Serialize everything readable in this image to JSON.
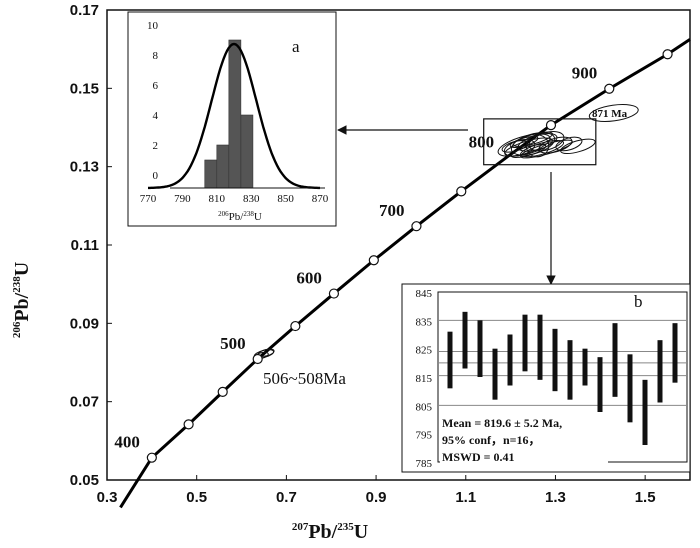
{
  "chart_data": {
    "type": "scatter",
    "title": "",
    "xlabel": {
      "mass_num": "207",
      "elem": "Pb",
      "den_mass": "235",
      "den_elem": "U"
    },
    "ylabel": {
      "mass_num": "206",
      "elem": "Pb",
      "den_mass": "238",
      "den_elem": "U"
    },
    "xlim": [
      0.3,
      1.6
    ],
    "ylim": [
      0.05,
      0.17
    ],
    "xticks": [
      "0.3",
      "0.5",
      "0.7",
      "0.9",
      "1.1",
      "1.3",
      "1.5"
    ],
    "yticks": [
      "0.05",
      "0.07",
      "0.09",
      "0.11",
      "0.13",
      "0.15",
      "0.17"
    ],
    "concordia_curve": [
      {
        "x": 0.33,
        "y": 0.043
      },
      {
        "x": 0.4,
        "y": 0.0557
      },
      {
        "x": 0.482,
        "y": 0.0642
      },
      {
        "x": 0.558,
        "y": 0.0725
      },
      {
        "x": 0.636,
        "y": 0.0809
      },
      {
        "x": 0.72,
        "y": 0.0893
      },
      {
        "x": 0.806,
        "y": 0.0976
      },
      {
        "x": 0.895,
        "y": 0.1061
      },
      {
        "x": 0.99,
        "y": 0.1148
      },
      {
        "x": 1.09,
        "y": 0.1237
      },
      {
        "x": 1.19,
        "y": 0.1323
      },
      {
        "x": 1.29,
        "y": 0.1406
      },
      {
        "x": 1.42,
        "y": 0.1499
      },
      {
        "x": 1.55,
        "y": 0.1587
      },
      {
        "x": 1.6,
        "y": 0.1625
      }
    ],
    "concordia_ticks": [
      {
        "x": 0.4,
        "y": 0.0557
      },
      {
        "x": 0.482,
        "y": 0.0642
      },
      {
        "x": 0.558,
        "y": 0.0725
      },
      {
        "x": 0.636,
        "y": 0.0809
      },
      {
        "x": 0.72,
        "y": 0.0893
      },
      {
        "x": 0.806,
        "y": 0.0976
      },
      {
        "x": 0.895,
        "y": 0.1061
      },
      {
        "x": 0.99,
        "y": 0.1148
      },
      {
        "x": 1.09,
        "y": 0.1237
      },
      {
        "x": 1.29,
        "y": 0.1406
      },
      {
        "x": 1.42,
        "y": 0.1499
      },
      {
        "x": 1.55,
        "y": 0.1587
      }
    ],
    "age_labels": [
      {
        "text": "400",
        "x": 0.4,
        "y": 0.0557
      },
      {
        "text": "500",
        "x": 0.636,
        "y": 0.0809
      },
      {
        "text": "600",
        "x": 0.806,
        "y": 0.0976
      },
      {
        "text": "700",
        "x": 0.99,
        "y": 0.1148
      },
      {
        "text": "800",
        "x": 1.19,
        "y": 0.1323
      },
      {
        "text": "900",
        "x": 1.42,
        "y": 0.1499
      }
    ],
    "ellipses_young": [
      {
        "x": 0.65,
        "y": 0.0822,
        "rx": 0.022,
        "ry": 0.0009
      },
      {
        "x": 0.655,
        "y": 0.0825,
        "rx": 0.018,
        "ry": 0.0008
      },
      {
        "x": 0.645,
        "y": 0.0818,
        "rx": 0.015,
        "ry": 0.0007
      }
    ],
    "ellipses_main": [
      {
        "x": 1.23,
        "y": 0.1355,
        "rx": 0.06,
        "ry": 0.0022
      },
      {
        "x": 1.25,
        "y": 0.1358,
        "rx": 0.05,
        "ry": 0.0025
      },
      {
        "x": 1.26,
        "y": 0.1362,
        "rx": 0.045,
        "ry": 0.0018
      },
      {
        "x": 1.24,
        "y": 0.135,
        "rx": 0.055,
        "ry": 0.0016
      },
      {
        "x": 1.28,
        "y": 0.1365,
        "rx": 0.04,
        "ry": 0.0022
      },
      {
        "x": 1.22,
        "y": 0.1348,
        "rx": 0.035,
        "ry": 0.0019
      },
      {
        "x": 1.27,
        "y": 0.1346,
        "rx": 0.05,
        "ry": 0.0014
      },
      {
        "x": 1.3,
        "y": 0.1355,
        "rx": 0.038,
        "ry": 0.0017
      },
      {
        "x": 1.21,
        "y": 0.1352,
        "rx": 0.03,
        "ry": 0.0012
      },
      {
        "x": 1.25,
        "y": 0.137,
        "rx": 0.045,
        "ry": 0.0012
      },
      {
        "x": 1.33,
        "y": 0.1358,
        "rx": 0.03,
        "ry": 0.0015
      },
      {
        "x": 1.24,
        "y": 0.134,
        "rx": 0.04,
        "ry": 0.0011
      },
      {
        "x": 1.26,
        "y": 0.1353,
        "rx": 0.025,
        "ry": 0.0028
      },
      {
        "x": 1.35,
        "y": 0.1352,
        "rx": 0.04,
        "ry": 0.0014
      },
      {
        "x": 1.28,
        "y": 0.1345,
        "rx": 0.06,
        "ry": 0.0013
      },
      {
        "x": 1.23,
        "y": 0.1363,
        "rx": 0.032,
        "ry": 0.001
      }
    ],
    "ellipse_discordant": {
      "x": 1.43,
      "y": 0.1437,
      "rx": 0.055,
      "ry": 0.002
    },
    "ellipse_discordant_label": "871 Ma",
    "young_cluster_label": "506~508Ma",
    "zoom_box": {
      "x0": 1.14,
      "x1": 1.39,
      "y0": 0.1305,
      "y1": 0.1422
    },
    "histogram": {
      "panel_label": "a",
      "xlabel": {
        "mass_num": "206",
        "elem": "Pb",
        "den_mass": "238",
        "den_elem": "U"
      },
      "xticks": [
        "770",
        "790",
        "810",
        "830",
        "850",
        "870"
      ],
      "yticks": [
        "0",
        "2",
        "4",
        "6",
        "8",
        "10"
      ],
      "xlim": [
        770,
        870
      ],
      "ylim": [
        0,
        10
      ],
      "bins": [
        {
          "from": 803,
          "to": 810,
          "count": 1
        },
        {
          "from": 810,
          "to": 817,
          "count": 2
        },
        {
          "from": 817,
          "to": 824,
          "count": 9
        },
        {
          "from": 824,
          "to": 831,
          "count": 4
        }
      ],
      "curve": {
        "peak": 9.6,
        "mean": 820,
        "sigma": 13
      }
    },
    "weighted_mean": {
      "panel_label": "b",
      "yticks": [
        "785",
        "795",
        "805",
        "815",
        "825",
        "835",
        "845"
      ],
      "ylim": [
        785,
        845
      ],
      "mean": 819.6,
      "bands": [
        805,
        815.5,
        820,
        824,
        835
      ],
      "bars": [
        {
          "lo": 811,
          "hi": 831
        },
        {
          "lo": 818,
          "hi": 838
        },
        {
          "lo": 815,
          "hi": 835
        },
        {
          "lo": 807,
          "hi": 825
        },
        {
          "lo": 812,
          "hi": 830
        },
        {
          "lo": 817,
          "hi": 837
        },
        {
          "lo": 814,
          "hi": 837
        },
        {
          "lo": 810,
          "hi": 832
        },
        {
          "lo": 807,
          "hi": 828
        },
        {
          "lo": 812,
          "hi": 825
        },
        {
          "lo": 802,
          "hi": 822
        },
        {
          "lo": 808,
          "hi": 834
        },
        {
          "lo": 799,
          "hi": 823
        },
        {
          "lo": 791,
          "hi": 814
        },
        {
          "lo": 806,
          "hi": 828
        },
        {
          "lo": 813,
          "hi": 834
        }
      ],
      "stats": [
        "Mean = 819.6 ± 5.2 Ma,",
        "95% conf，n=16，",
        "MSWD = 0.41"
      ]
    }
  }
}
